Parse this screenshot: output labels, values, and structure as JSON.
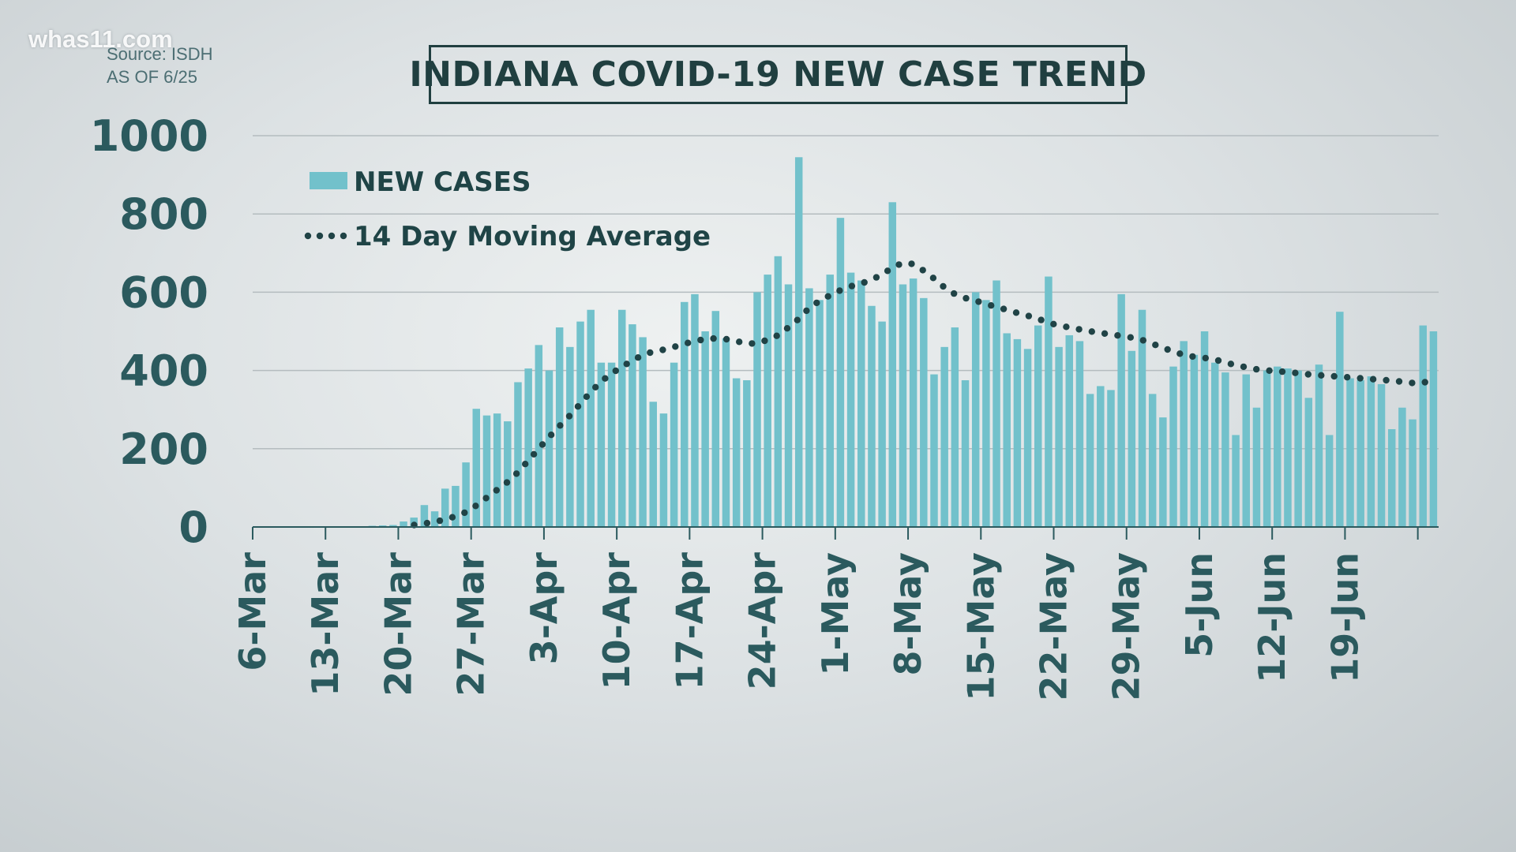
{
  "watermark": "whas11.com",
  "source": {
    "line1": "Source: ISDH",
    "line2": "AS OF 6/25"
  },
  "colors": {
    "bar": "#72c1cb",
    "avg": "#204346",
    "grid": "#b4bcbf",
    "axis": "#2b5a5e",
    "text": "#2b5a5e"
  },
  "chart_data": {
    "type": "bar",
    "title": "INDIANA COVID-19 NEW CASE TREND",
    "xlabel": "",
    "ylabel": "",
    "ylim": [
      0,
      1000
    ],
    "yticks": [
      "0",
      "200",
      "400",
      "600",
      "800",
      "1000"
    ],
    "grid": true,
    "legend_position": "top-left",
    "x_tick_labels": [
      "6-Mar",
      "13-Mar",
      "20-Mar",
      "27-Mar",
      "3-Apr",
      "10-Apr",
      "17-Apr",
      "24-Apr",
      "1-May",
      "8-May",
      "15-May",
      "22-May",
      "29-May",
      "5-Jun",
      "12-Jun",
      "19-Jun"
    ],
    "series": [
      {
        "name": "NEW CASES",
        "type": "bar",
        "values": [
          0,
          0,
          0,
          0,
          0,
          0,
          0,
          0,
          0,
          0,
          2,
          3,
          4,
          5,
          14,
          24,
          56,
          40,
          98,
          105,
          165,
          302,
          285,
          290,
          270,
          370,
          405,
          465,
          400,
          510,
          460,
          525,
          555,
          420,
          420,
          555,
          518,
          485,
          320,
          290,
          420,
          575,
          595,
          500,
          552,
          482,
          380,
          375,
          600,
          645,
          692,
          620,
          945,
          610,
          580,
          645,
          790,
          650,
          630,
          565,
          525,
          830,
          620,
          635,
          585,
          390,
          460,
          510,
          375,
          600,
          580,
          630,
          495,
          480,
          455,
          515,
          640,
          460,
          490,
          475,
          340,
          360,
          350,
          595,
          450,
          555,
          340,
          280,
          410,
          475,
          440,
          500,
          420,
          395,
          235,
          390,
          305,
          400,
          410,
          405,
          400,
          330,
          415,
          235,
          550,
          380,
          375,
          385,
          365,
          250,
          305,
          275,
          515,
          500
        ]
      },
      {
        "name": "14 Day Moving Average",
        "type": "line",
        "values": [
          0,
          0,
          0,
          0,
          0,
          0,
          0,
          0,
          0,
          0,
          1,
          1,
          2,
          2,
          3,
          5,
          9,
          12,
          20,
          27,
          38,
          55,
          75,
          95,
          115,
          140,
          170,
          200,
          230,
          258,
          285,
          315,
          345,
          372,
          392,
          410,
          425,
          440,
          448,
          453,
          460,
          468,
          475,
          480,
          482,
          480,
          475,
          468,
          470,
          478,
          490,
          510,
          532,
          560,
          578,
          592,
          605,
          615,
          622,
          632,
          645,
          663,
          675,
          672,
          655,
          635,
          612,
          595,
          585,
          578,
          570,
          562,
          555,
          547,
          540,
          532,
          522,
          515,
          510,
          505,
          500,
          496,
          492,
          488,
          484,
          478,
          468,
          458,
          448,
          440,
          435,
          432,
          428,
          420,
          414,
          408,
          403,
          400,
          398,
          396,
          393,
          390,
          388,
          386,
          384,
          382,
          380,
          378,
          376,
          374,
          371,
          368,
          368,
          378
        ]
      }
    ]
  }
}
